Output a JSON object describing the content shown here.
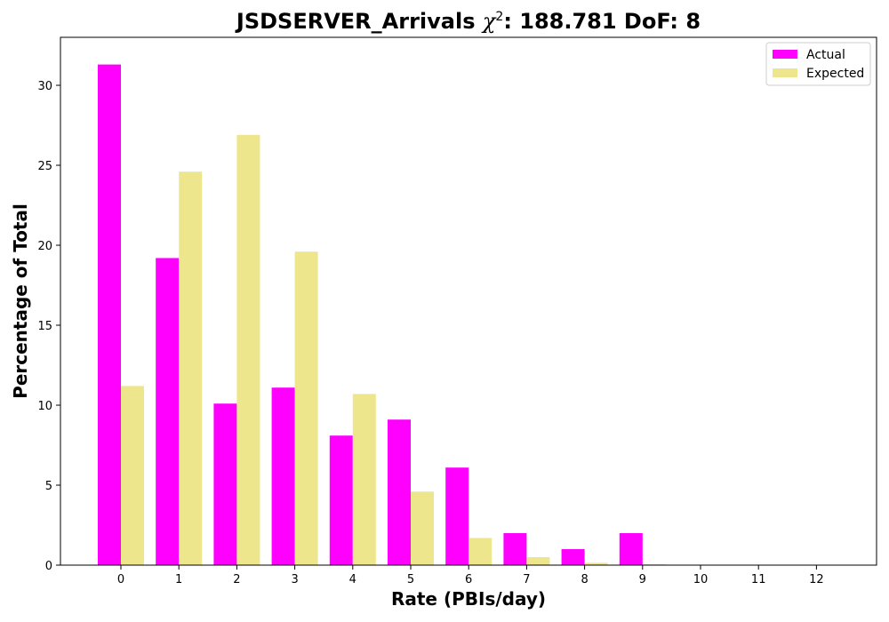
{
  "chart_data": {
    "type": "bar",
    "title_main": "JSDSERVER_Arrivals ",
    "title_chi": "χ",
    "title_sup": "2",
    "title_rest": ": 188.781 DoF: 8",
    "xlabel": "Rate (PBIs/day)",
    "ylabel": "Percentage of Total",
    "categories": [
      "0",
      "1",
      "2",
      "3",
      "4",
      "5",
      "6",
      "7",
      "8",
      "9",
      "10",
      "11",
      "12"
    ],
    "ylim": [
      0,
      33
    ],
    "yticks": [
      0,
      5,
      10,
      15,
      20,
      25,
      30
    ],
    "legend_position": "upper right",
    "series": [
      {
        "name": "Actual",
        "color": "#ff00ff",
        "values": [
          31.3,
          19.2,
          10.1,
          11.1,
          8.1,
          9.1,
          6.1,
          2.0,
          1.0,
          2.0,
          0,
          0,
          0
        ]
      },
      {
        "name": "Expected",
        "color": "#eee68c",
        "values": [
          11.2,
          24.6,
          26.9,
          19.6,
          10.7,
          4.6,
          1.7,
          0.5,
          0.15,
          0.05,
          0,
          0,
          0
        ]
      }
    ]
  }
}
